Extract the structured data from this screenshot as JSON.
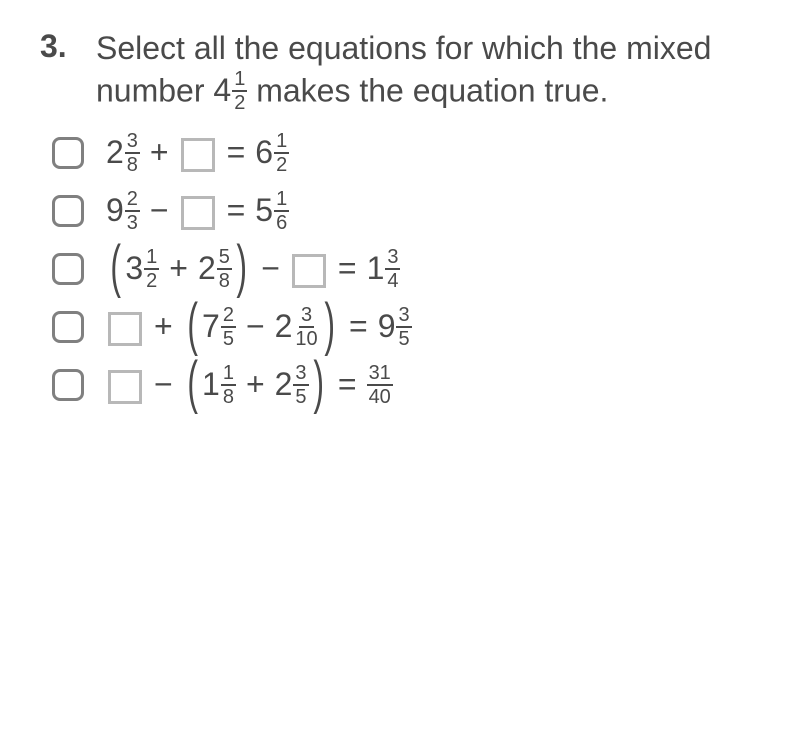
{
  "question_number": "3.",
  "prompt_parts": {
    "before": "Select all the equations for which the mixed number ",
    "mixed_whole": "4",
    "mixed_num": "1",
    "mixed_den": "2",
    "after": " makes the equation true."
  },
  "choices": [
    {
      "tokens": [
        {
          "t": "mixed",
          "whole": "2",
          "num": "3",
          "den": "8"
        },
        {
          "t": "op",
          "v": "+"
        },
        {
          "t": "blank"
        },
        {
          "t": "eq",
          "v": "="
        },
        {
          "t": "mixed",
          "whole": "6",
          "num": "1",
          "den": "2"
        }
      ]
    },
    {
      "tokens": [
        {
          "t": "mixed",
          "whole": "9",
          "num": "2",
          "den": "3"
        },
        {
          "t": "op",
          "v": "−"
        },
        {
          "t": "blank"
        },
        {
          "t": "eq",
          "v": "="
        },
        {
          "t": "mixed",
          "whole": "5",
          "num": "1",
          "den": "6"
        }
      ]
    },
    {
      "tokens": [
        {
          "t": "lparen"
        },
        {
          "t": "mixed",
          "whole": "3",
          "num": "1",
          "den": "2"
        },
        {
          "t": "op",
          "v": "+"
        },
        {
          "t": "mixed",
          "whole": "2",
          "num": "5",
          "den": "8"
        },
        {
          "t": "rparen"
        },
        {
          "t": "op",
          "v": "−"
        },
        {
          "t": "blank"
        },
        {
          "t": "eq",
          "v": "="
        },
        {
          "t": "mixed",
          "whole": "1",
          "num": "3",
          "den": "4"
        }
      ]
    },
    {
      "tokens": [
        {
          "t": "blank"
        },
        {
          "t": "op",
          "v": "+"
        },
        {
          "t": "lparen"
        },
        {
          "t": "mixed",
          "whole": "7",
          "num": "2",
          "den": "5"
        },
        {
          "t": "op",
          "v": "−"
        },
        {
          "t": "mixed",
          "whole": "2",
          "num": "3",
          "den": "10"
        },
        {
          "t": "rparen"
        },
        {
          "t": "eq",
          "v": "="
        },
        {
          "t": "mixed",
          "whole": "9",
          "num": "3",
          "den": "5"
        }
      ]
    },
    {
      "tokens": [
        {
          "t": "blank"
        },
        {
          "t": "op",
          "v": "−"
        },
        {
          "t": "lparen"
        },
        {
          "t": "mixed",
          "whole": "1",
          "num": "1",
          "den": "8"
        },
        {
          "t": "op",
          "v": "+"
        },
        {
          "t": "mixed",
          "whole": "2",
          "num": "3",
          "den": "5"
        },
        {
          "t": "rparen"
        },
        {
          "t": "eq",
          "v": "="
        },
        {
          "t": "frac",
          "num": "31",
          "den": "40"
        }
      ]
    }
  ],
  "colors": {
    "text": "#4a4a4a",
    "checkbox_border": "#808080",
    "blank_border": "#b8b8b8",
    "background": "#ffffff"
  }
}
